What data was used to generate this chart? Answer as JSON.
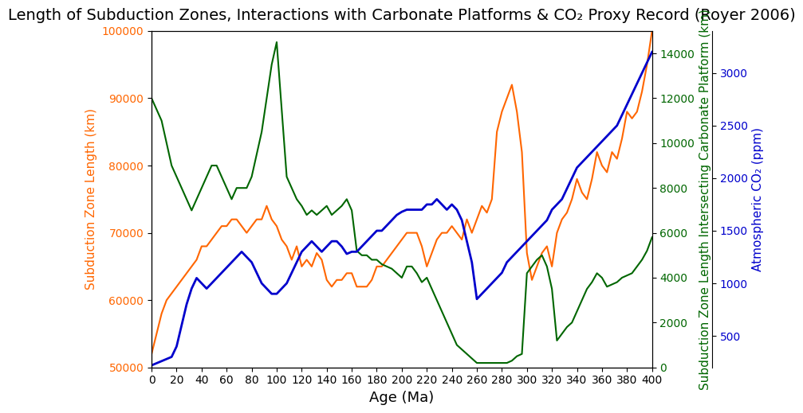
{
  "title": "Length of Subduction Zones, Interactions with Carbonate Platforms & CO₂ Proxy Record (Royer 2006)",
  "xlabel": "Age (Ma)",
  "ylabel_left": "Subduction Zone Length (km)",
  "ylabel_mid": "Subduction Zone Length Intersecting Carbonate Platform (km)",
  "ylabel_right": "Atmospheric CO₂ (ppm)",
  "xlim": [
    400,
    0
  ],
  "ylim_left": [
    50000,
    100000
  ],
  "ylim_mid": [
    0,
    15000
  ],
  "ylim_right": [
    200,
    3400
  ],
  "color_orange": "#FF6600",
  "color_green": "#006600",
  "color_blue": "#0000CC",
  "xticks": [
    400,
    380,
    360,
    340,
    320,
    300,
    280,
    260,
    240,
    220,
    200,
    180,
    160,
    140,
    120,
    100,
    80,
    60,
    40,
    20,
    0
  ],
  "orange_x": [
    400,
    396,
    392,
    388,
    384,
    380,
    376,
    372,
    368,
    364,
    360,
    356,
    352,
    348,
    344,
    340,
    336,
    332,
    328,
    324,
    320,
    316,
    312,
    308,
    304,
    300,
    296,
    292,
    288,
    284,
    280,
    276,
    272,
    268,
    264,
    260,
    256,
    252,
    248,
    244,
    240,
    236,
    232,
    228,
    224,
    220,
    216,
    212,
    208,
    204,
    200,
    196,
    192,
    188,
    184,
    180,
    176,
    172,
    168,
    164,
    160,
    156,
    152,
    148,
    144,
    140,
    136,
    132,
    128,
    124,
    120,
    116,
    112,
    108,
    104,
    100,
    96,
    92,
    88,
    84,
    80,
    76,
    72,
    68,
    64,
    60,
    56,
    52,
    48,
    44,
    40,
    36,
    32,
    28,
    24,
    20,
    16,
    12,
    8,
    4,
    0
  ],
  "orange_y": [
    100000,
    95000,
    91000,
    88000,
    87000,
    88000,
    84000,
    81000,
    82000,
    79000,
    80000,
    82000,
    78000,
    75000,
    76000,
    78000,
    75000,
    73000,
    72000,
    70000,
    65000,
    68000,
    67000,
    65000,
    63000,
    67000,
    82000,
    88000,
    92000,
    90000,
    88000,
    85000,
    75000,
    73000,
    74000,
    72000,
    70000,
    72000,
    69000,
    70000,
    71000,
    70000,
    70000,
    69000,
    67000,
    65000,
    68000,
    70000,
    70000,
    70000,
    69000,
    68000,
    67000,
    66000,
    65000,
    65000,
    63000,
    62000,
    62000,
    62000,
    64000,
    64000,
    63000,
    63000,
    62000,
    63000,
    66000,
    67000,
    65000,
    66000,
    65000,
    68000,
    66000,
    68000,
    69000,
    71000,
    72000,
    74000,
    72000,
    72000,
    71000,
    70000,
    71000,
    72000,
    72000,
    71000,
    71000,
    70000,
    69000,
    68000,
    68000,
    66000,
    65000,
    64000,
    63000,
    62000,
    61000,
    60000,
    58000,
    55000,
    52000
  ],
  "green_x": [
    400,
    396,
    392,
    388,
    384,
    380,
    376,
    372,
    368,
    364,
    360,
    356,
    352,
    348,
    344,
    340,
    336,
    332,
    328,
    324,
    320,
    316,
    312,
    308,
    304,
    300,
    296,
    292,
    288,
    284,
    280,
    276,
    272,
    268,
    264,
    260,
    256,
    252,
    248,
    244,
    240,
    236,
    232,
    228,
    224,
    220,
    216,
    212,
    208,
    204,
    200,
    196,
    192,
    188,
    184,
    180,
    176,
    172,
    168,
    164,
    160,
    156,
    152,
    148,
    144,
    140,
    136,
    132,
    128,
    124,
    120,
    116,
    112,
    108,
    104,
    100,
    96,
    92,
    88,
    84,
    80,
    76,
    72,
    68,
    64,
    60,
    56,
    52,
    48,
    44,
    40,
    36,
    32,
    28,
    24,
    20,
    16,
    12,
    8,
    4,
    0
  ],
  "green_y": [
    5800,
    5200,
    4800,
    4500,
    4200,
    4100,
    4000,
    3800,
    3700,
    3600,
    4000,
    4200,
    3800,
    3500,
    3000,
    2500,
    2000,
    1800,
    1500,
    1200,
    3500,
    4500,
    5000,
    4800,
    4500,
    4200,
    600,
    500,
    300,
    200,
    200,
    200,
    200,
    200,
    200,
    200,
    400,
    600,
    800,
    1000,
    1500,
    2000,
    2500,
    3000,
    3500,
    4000,
    3800,
    4200,
    4500,
    4500,
    4000,
    4200,
    4400,
    4500,
    4600,
    4800,
    4800,
    5000,
    5000,
    5200,
    7000,
    7500,
    7200,
    7000,
    6800,
    7200,
    7000,
    6800,
    7000,
    6800,
    7200,
    7500,
    8000,
    8500,
    11500,
    14500,
    13500,
    12000,
    10500,
    9500,
    8500,
    8000,
    8000,
    8000,
    7500,
    8000,
    8500,
    9000,
    9000,
    8500,
    8000,
    7500,
    7000,
    7500,
    8000,
    8500,
    9000,
    10000,
    11000,
    11500,
    12000
  ],
  "blue_x": [
    400,
    396,
    392,
    388,
    384,
    380,
    376,
    372,
    368,
    364,
    360,
    356,
    352,
    348,
    344,
    340,
    336,
    332,
    328,
    324,
    320,
    316,
    312,
    308,
    304,
    300,
    296,
    292,
    288,
    284,
    280,
    276,
    272,
    268,
    264,
    260,
    256,
    252,
    248,
    244,
    240,
    236,
    232,
    228,
    224,
    220,
    216,
    212,
    208,
    204,
    200,
    196,
    192,
    188,
    184,
    180,
    176,
    172,
    168,
    164,
    160,
    156,
    152,
    148,
    144,
    140,
    136,
    132,
    128,
    124,
    120,
    116,
    112,
    108,
    104,
    100,
    96,
    92,
    88,
    84,
    80,
    76,
    72,
    68,
    64,
    60,
    56,
    52,
    48,
    44,
    40,
    36,
    32,
    28,
    24,
    20,
    16,
    12,
    8,
    4,
    0
  ],
  "blue_y": [
    3200,
    3100,
    3000,
    2900,
    2800,
    2700,
    2600,
    2500,
    2450,
    2400,
    2350,
    2300,
    2250,
    2200,
    2150,
    2100,
    2000,
    1900,
    1800,
    1750,
    1700,
    1600,
    1550,
    1500,
    1450,
    1400,
    1350,
    1300,
    1250,
    1200,
    1100,
    1050,
    1000,
    950,
    900,
    850,
    1200,
    1400,
    1600,
    1700,
    1750,
    1700,
    1750,
    1800,
    1750,
    1750,
    1700,
    1700,
    1700,
    1700,
    1680,
    1650,
    1600,
    1550,
    1500,
    1500,
    1450,
    1400,
    1350,
    1300,
    1300,
    1280,
    1350,
    1400,
    1400,
    1350,
    1300,
    1350,
    1400,
    1350,
    1300,
    1200,
    1100,
    1000,
    950,
    900,
    900,
    950,
    1000,
    1100,
    1200,
    1250,
    1300,
    1250,
    1200,
    1150,
    1100,
    1050,
    1000,
    950,
    1000,
    1050,
    950,
    800,
    600,
    400,
    300,
    280,
    260,
    240,
    220
  ]
}
